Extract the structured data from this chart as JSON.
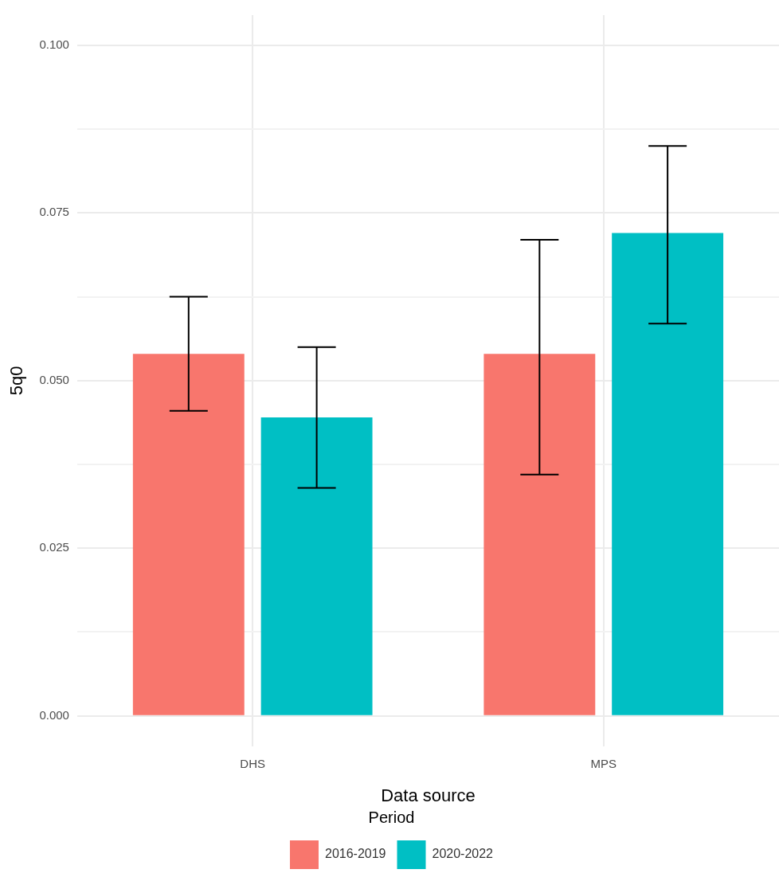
{
  "chart_data": {
    "type": "bar",
    "xlabel": "Data source",
    "ylabel": "5q0",
    "legend_title": "Period",
    "categories": [
      "DHS",
      "MPS"
    ],
    "series": [
      {
        "name": "2016-2019",
        "color": "#f8766d",
        "values": [
          0.054,
          0.054
        ],
        "errors": [
          [
            0.0455,
            0.0625
          ],
          [
            0.036,
            0.071
          ]
        ]
      },
      {
        "name": "2020-2022",
        "color": "#00bfc4",
        "values": [
          0.0445,
          0.072
        ],
        "errors": [
          [
            0.034,
            0.055
          ],
          [
            0.0585,
            0.085
          ]
        ]
      }
    ],
    "ylim": [
      -0.0045,
      0.1045
    ],
    "yticks": [
      {
        "value": 0,
        "label": "0.000"
      },
      {
        "value": 0.0125,
        "label": null
      },
      {
        "value": 0.025,
        "label": "0.025"
      },
      {
        "value": 0.0375,
        "label": null
      },
      {
        "value": 0.05,
        "label": "0.050"
      },
      {
        "value": 0.0625,
        "label": null
      },
      {
        "value": 0.075,
        "label": "0.075"
      },
      {
        "value": 0.0875,
        "label": null
      },
      {
        "value": 0.1,
        "label": "0.100"
      }
    ],
    "grid": true,
    "legend": "bottom"
  }
}
